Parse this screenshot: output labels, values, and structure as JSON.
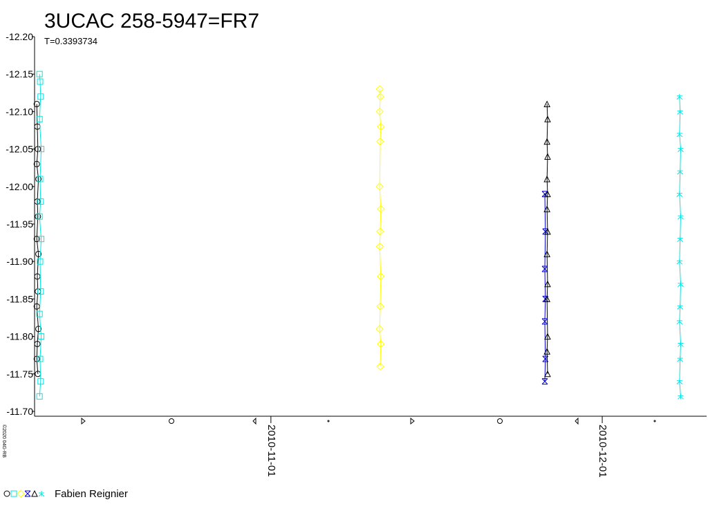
{
  "chart_data": {
    "type": "scatter",
    "title": "3UCAC 258-5947=FR7",
    "subtitle": "T=0.3393734",
    "credit": "©2020 04G-RB",
    "observer": "Fabien Reignier",
    "xlim": [
      2455480.1,
      2455540.95
    ],
    "xticks": [
      {
        "value": 2455501.5,
        "label": "2010-11-01"
      },
      {
        "value": 2455531.5,
        "label": "2010-12-01"
      }
    ],
    "ylim": [
      -12.2,
      -11.7
    ],
    "y_reversed": true,
    "yticks": [
      {
        "value": -12.2,
        "label": "-12.20"
      },
      {
        "value": -12.15,
        "label": "-12.15"
      },
      {
        "value": -12.1,
        "label": "-12.10"
      },
      {
        "value": -12.05,
        "label": "-12.05"
      },
      {
        "value": -12.0,
        "label": "-12.00"
      },
      {
        "value": -11.95,
        "label": "-11.95"
      },
      {
        "value": -11.9,
        "label": "-11.90"
      },
      {
        "value": -11.85,
        "label": "-11.85"
      },
      {
        "value": -11.8,
        "label": "-11.80"
      },
      {
        "value": -11.75,
        "label": "-11.75"
      },
      {
        "value": -11.7,
        "label": "-11.70"
      }
    ],
    "connect": true,
    "series": [
      {
        "marker": "circle",
        "color": "#000000",
        "x": [
          2455480.3,
          2455480.35,
          2455480.4,
          2455480.3,
          2455480.45,
          2455480.35,
          2455480.4,
          2455480.3,
          2455480.45,
          2455480.35,
          2455480.4,
          2455480.3,
          2455480.45,
          2455480.35,
          2455480.3,
          2455480.4
        ],
        "y": [
          -12.11,
          -12.08,
          -12.05,
          -12.03,
          -12.01,
          -11.98,
          -11.96,
          -11.93,
          -11.91,
          -11.88,
          -11.86,
          -11.84,
          -11.81,
          -11.79,
          -11.77,
          -11.75
        ]
      },
      {
        "marker": "square",
        "color": "#00e5e5",
        "x": [
          2455480.55,
          2455480.6,
          2455480.65,
          2455480.55,
          2455480.7,
          2455480.6,
          2455480.65,
          2455480.55,
          2455480.7,
          2455480.6,
          2455480.65,
          2455480.55,
          2455480.7,
          2455480.6,
          2455480.65,
          2455480.55
        ],
        "y": [
          -12.15,
          -12.14,
          -12.12,
          -12.09,
          -12.05,
          -12.01,
          -11.98,
          -11.96,
          -11.93,
          -11.9,
          -11.86,
          -11.83,
          -11.8,
          -11.77,
          -11.74,
          -11.72
        ]
      },
      {
        "marker": "diamond",
        "color": "#ffff00",
        "x": [
          2455511.35,
          2455511.4,
          2455511.35,
          2455511.45,
          2455511.4,
          2455511.35,
          2455511.45,
          2455511.4,
          2455511.35,
          2455511.45,
          2455511.4,
          2455511.35,
          2455511.45,
          2455511.4
        ],
        "y": [
          -12.13,
          -12.12,
          -12.1,
          -12.08,
          -12.06,
          -12.0,
          -11.97,
          -11.94,
          -11.92,
          -11.88,
          -11.84,
          -11.81,
          -11.79,
          -11.76
        ]
      },
      {
        "marker": "cross",
        "color": "#0000cc",
        "x": [
          2455526.3,
          2455526.35,
          2455526.3,
          2455526.35,
          2455526.3,
          2455526.35,
          2455526.3
        ],
        "y": [
          -11.99,
          -11.94,
          -11.89,
          -11.85,
          -11.82,
          -11.77,
          -11.74
        ]
      },
      {
        "marker": "triangle",
        "color": "#000000",
        "x": [
          2455526.5,
          2455526.55,
          2455526.5,
          2455526.55,
          2455526.5,
          2455526.55,
          2455526.5,
          2455526.55,
          2455526.5,
          2455526.55,
          2455526.5,
          2455526.55,
          2455526.5,
          2455526.55
        ],
        "y": [
          -12.11,
          -12.09,
          -12.06,
          -12.04,
          -12.01,
          -11.99,
          -11.97,
          -11.94,
          -11.91,
          -11.87,
          -11.85,
          -11.8,
          -11.78,
          -11.75
        ]
      },
      {
        "marker": "star",
        "color": "#00e5e5",
        "x": [
          2455538.5,
          2455538.55,
          2455538.5,
          2455538.6,
          2455538.55,
          2455538.5,
          2455538.6,
          2455538.55,
          2455538.5,
          2455538.6,
          2455538.55,
          2455538.5,
          2455538.6,
          2455538.55,
          2455538.5,
          2455538.6
        ],
        "y": [
          -12.12,
          -12.1,
          -12.07,
          -12.05,
          -12.02,
          -11.99,
          -11.96,
          -11.93,
          -11.9,
          -11.87,
          -11.84,
          -11.82,
          -11.79,
          -11.77,
          -11.74,
          -11.72
        ]
      }
    ]
  }
}
